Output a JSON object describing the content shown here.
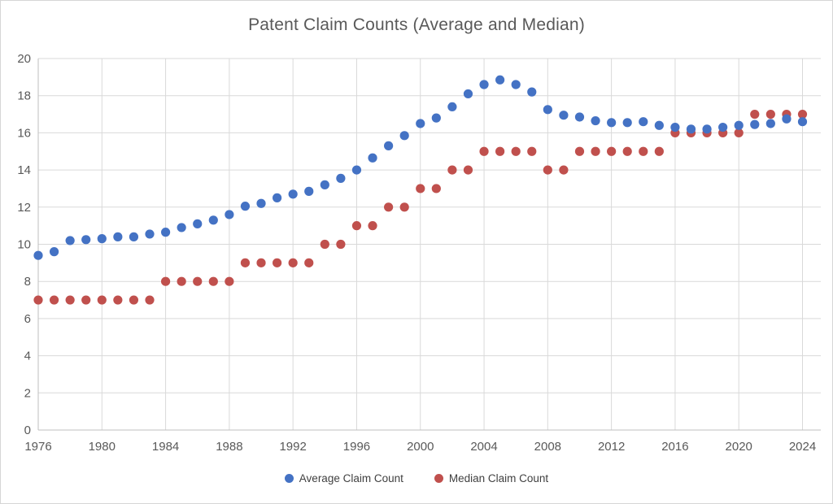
{
  "chart_data": {
    "type": "scatter",
    "title": "Patent Claim Counts (Average and Median)",
    "xlabel": "",
    "ylabel": "",
    "xlim": [
      1976,
      2024
    ],
    "ylim": [
      0,
      20
    ],
    "x_ticks": [
      1976,
      1980,
      1984,
      1988,
      1992,
      1996,
      2000,
      2004,
      2008,
      2012,
      2016,
      2020,
      2024
    ],
    "y_ticks": [
      0,
      2,
      4,
      6,
      8,
      10,
      12,
      14,
      16,
      18,
      20
    ],
    "grid": true,
    "legend_position": "bottom",
    "years": [
      1976,
      1977,
      1978,
      1979,
      1980,
      1981,
      1982,
      1983,
      1984,
      1985,
      1986,
      1987,
      1988,
      1989,
      1990,
      1991,
      1992,
      1993,
      1994,
      1995,
      1996,
      1997,
      1998,
      1999,
      2000,
      2001,
      2002,
      2003,
      2004,
      2005,
      2006,
      2007,
      2008,
      2009,
      2010,
      2011,
      2012,
      2013,
      2014,
      2015,
      2016,
      2017,
      2018,
      2019,
      2020,
      2021,
      2022,
      2023,
      2024
    ],
    "series": [
      {
        "name": "Average Claim Count",
        "color": "#4472c4",
        "values": [
          9.4,
          9.6,
          10.2,
          10.25,
          10.3,
          10.4,
          10.4,
          10.55,
          10.65,
          10.9,
          11.1,
          11.3,
          11.6,
          12.05,
          12.2,
          12.5,
          12.7,
          12.85,
          13.2,
          13.55,
          14.0,
          14.65,
          15.3,
          15.85,
          16.5,
          16.8,
          17.4,
          18.1,
          18.6,
          18.85,
          18.6,
          18.2,
          17.25,
          16.95,
          16.85,
          16.65,
          16.55,
          16.55,
          16.6,
          16.4,
          16.3,
          16.2,
          16.2,
          16.3,
          16.4,
          16.45,
          16.5,
          16.75,
          16.6
        ]
      },
      {
        "name": "Median Claim Count",
        "color": "#c0504d",
        "values": [
          7,
          7,
          7,
          7,
          7,
          7,
          7,
          7,
          8,
          8,
          8,
          8,
          8,
          9,
          9,
          9,
          9,
          9,
          10,
          10,
          11,
          11,
          12,
          12,
          13,
          13,
          14,
          14,
          15,
          15,
          15,
          15,
          14,
          14,
          15,
          15,
          15,
          15,
          15,
          15,
          16,
          16,
          16,
          16,
          16,
          17,
          17,
          17,
          17
        ]
      }
    ],
    "colors": {
      "gridline": "#d9d9d9",
      "axis_line": "#bfbfbf",
      "tick_label": "#595959",
      "title": "#595959",
      "legend_text": "#404040",
      "background": "#ffffff"
    }
  }
}
